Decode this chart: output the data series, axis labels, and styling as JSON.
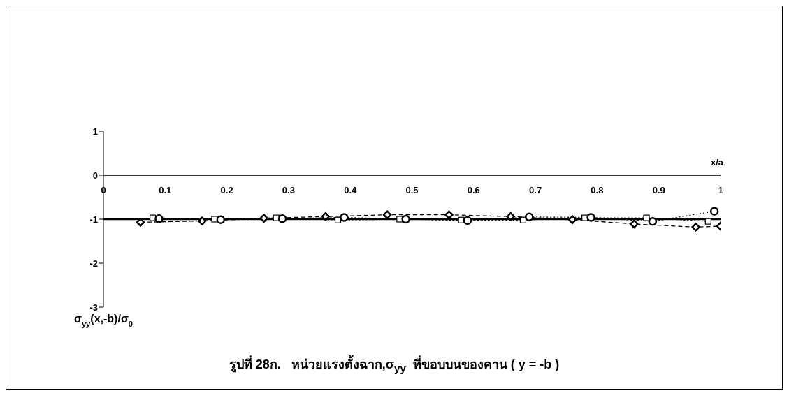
{
  "chart_data": {
    "type": "line",
    "title": "รูปที่ 28ก.   หน่วยแรงตั้งฉาก,σ$_{yy}$  ที่ขอบบนของคาน ( y = -b )",
    "xlabel": "x/a",
    "ylabel": "σ$_{yy}$(x,-b)/σ$_{0}$",
    "xlim": [
      0,
      1
    ],
    "xticks": [
      0,
      0.1,
      0.2,
      0.3,
      0.4,
      0.5,
      0.6,
      0.7,
      0.8,
      0.9,
      1
    ],
    "ylim": [
      -3,
      1
    ],
    "yticks": [
      -3,
      -2,
      -1,
      0,
      1
    ],
    "grid": false,
    "legend": false,
    "series": [
      {
        "color": "#000000",
        "marker": "none",
        "line_style": "solid",
        "x": [
          0,
          1
        ],
        "values": [
          -1,
          -1
        ]
      },
      {
        "color": "#000000",
        "marker": "diamond",
        "line_style": "dashed",
        "x": [
          0.06,
          0.16,
          0.26,
          0.36,
          0.46,
          0.56,
          0.66,
          0.76,
          0.86,
          0.96,
          1
        ],
        "values": [
          -1.07,
          -1.04,
          -0.98,
          -0.94,
          -0.9,
          -0.9,
          -0.94,
          -1.01,
          -1.11,
          -1.18,
          -1.16
        ]
      },
      {
        "color": "#000000",
        "marker": "square",
        "line_style": "dotted",
        "x": [
          0.08,
          0.18,
          0.28,
          0.38,
          0.48,
          0.58,
          0.68,
          0.78,
          0.88,
          0.98
        ],
        "values": [
          -0.97,
          -1.0,
          -0.97,
          -1.02,
          -1.0,
          -1.02,
          -1.02,
          -0.97,
          -0.97,
          -1.05
        ]
      },
      {
        "color": "#000000",
        "marker": "circle",
        "line_style": "dotted",
        "x": [
          0.09,
          0.19,
          0.29,
          0.39,
          0.49,
          0.59,
          0.69,
          0.79,
          0.89,
          0.99
        ],
        "values": [
          -0.99,
          -1.01,
          -0.99,
          -0.96,
          -1.0,
          -1.03,
          -0.95,
          -0.96,
          -1.05,
          -0.82
        ]
      }
    ]
  }
}
